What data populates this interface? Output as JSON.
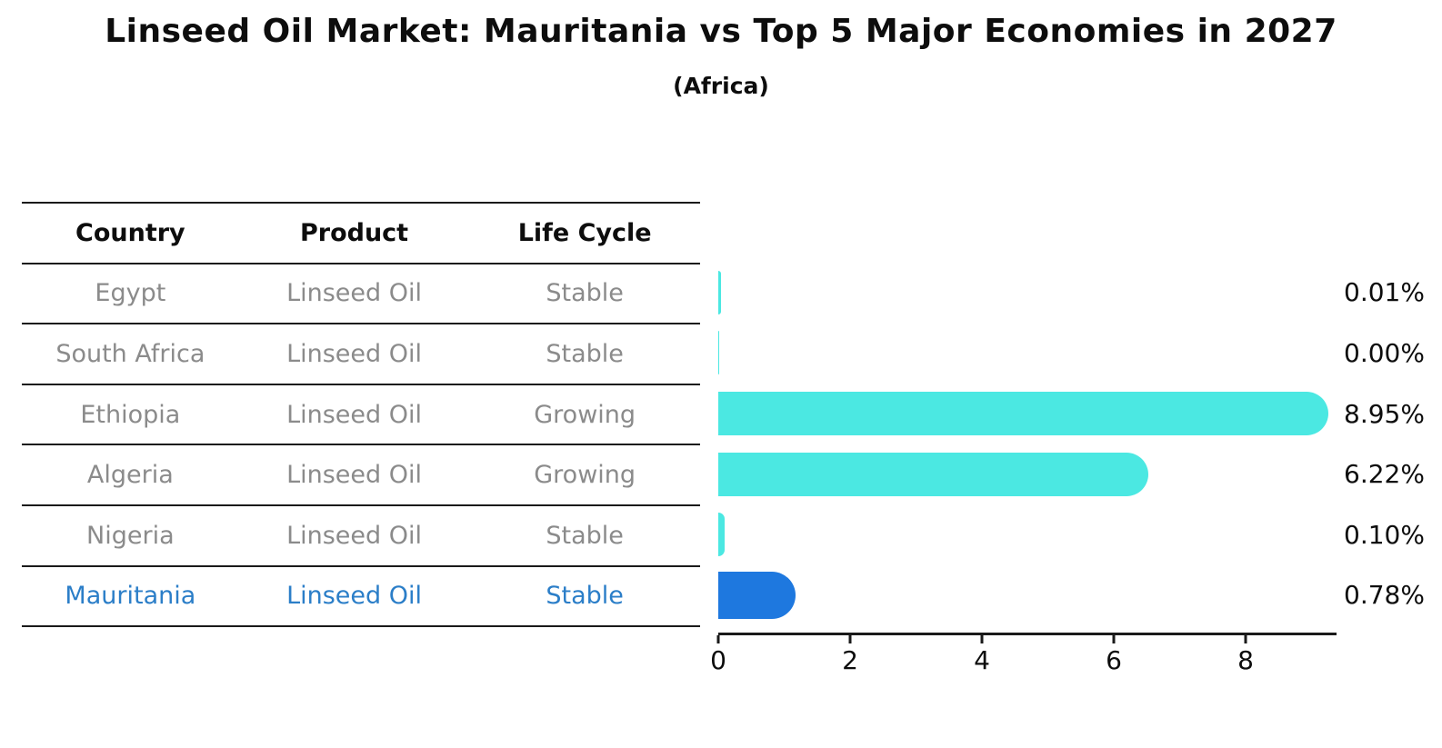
{
  "title": "Linseed Oil Market: Mauritania vs Top 5 Major Economies in 2027",
  "subtitle": "(Africa)",
  "table": {
    "headers": [
      "Country",
      "Product",
      "Life Cycle"
    ],
    "rows": [
      {
        "country": "Egypt",
        "product": "Linseed Oil",
        "life_cycle": "Stable"
      },
      {
        "country": "South Africa",
        "product": "Linseed Oil",
        "life_cycle": "Stable"
      },
      {
        "country": "Ethiopia",
        "product": "Linseed Oil",
        "life_cycle": "Growing"
      },
      {
        "country": "Algeria",
        "product": "Linseed Oil",
        "life_cycle": "Growing"
      },
      {
        "country": "Nigeria",
        "product": "Linseed Oil",
        "life_cycle": "Stable"
      },
      {
        "country": "Mauritania",
        "product": "Linseed Oil",
        "life_cycle": "Stable"
      }
    ]
  },
  "chart_data": {
    "type": "bar",
    "orientation": "horizontal",
    "title": "Linseed Oil Market: Mauritania vs Top 5 Major Economies in 2027",
    "subtitle": "(Africa)",
    "categories": [
      "Egypt",
      "South Africa",
      "Ethiopia",
      "Algeria",
      "Nigeria",
      "Mauritania"
    ],
    "values": [
      0.01,
      0.0,
      8.95,
      6.22,
      0.1,
      0.78
    ],
    "value_labels": [
      "0.01%",
      "0.00%",
      "8.95%",
      "6.22%",
      "0.10%",
      "0.78%"
    ],
    "x_ticks": [
      "0",
      "2",
      "4",
      "6",
      "8"
    ],
    "x_tick_values": [
      0,
      2,
      4,
      6,
      8
    ],
    "xlim": [
      0,
      9.35
    ],
    "grid": false,
    "legend": false,
    "highlight_index": 5,
    "colors": {
      "bar": "#4BE8E2",
      "highlight_bar": "#1E78DF",
      "highlight_text": "#2B7EC8",
      "axis": "#1a1a1a",
      "table_text": "#8b8b8b",
      "label_text": "#0d0d0d"
    }
  }
}
